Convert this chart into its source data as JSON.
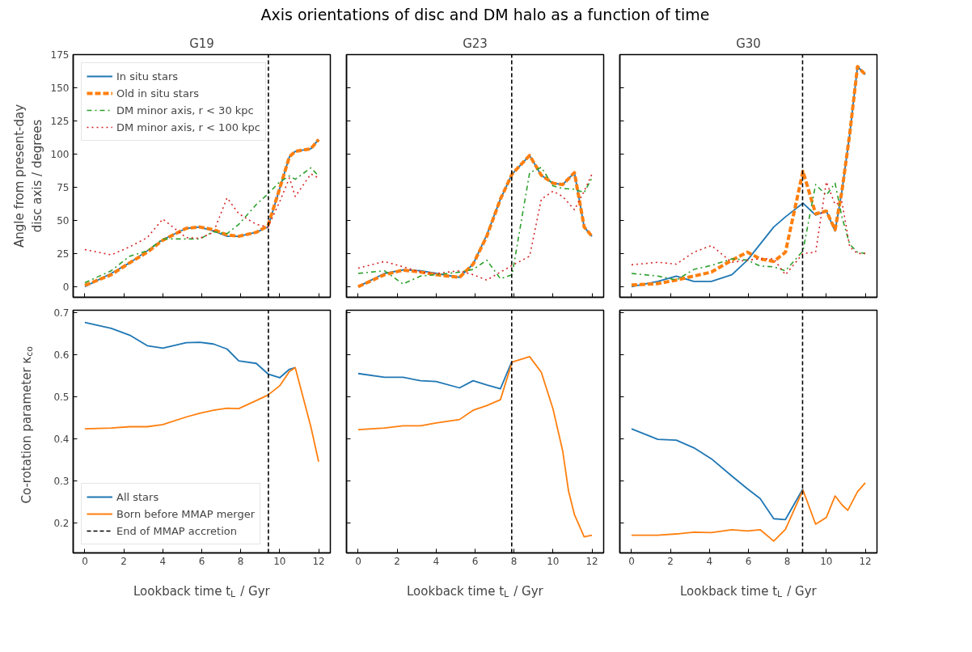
{
  "chart_data": [
    {
      "type": "line",
      "title": "G19",
      "annotations": [
        "Axis orientations of disc and DM halo as a function of time"
      ],
      "ylabel": "Angle from present-day\ndisc axis / degrees",
      "tick_labels": "y",
      "legend": "top left",
      "grid": false,
      "xlim": [
        -0.6,
        12.6
      ],
      "ylim": [
        -8,
        175
      ],
      "xticks": [
        0,
        2,
        4,
        6,
        8,
        10,
        12
      ],
      "yticks": [
        0,
        25,
        50,
        75,
        100,
        125,
        150,
        175
      ],
      "x": [
        0,
        1.35,
        2.3,
        3.2,
        4.0,
        5.2,
        5.9,
        6.6,
        7.3,
        7.9,
        8.8,
        9.4,
        10.0,
        10.5,
        10.8,
        11.6,
        12.0
      ],
      "series": [
        {
          "name": "In situ stars",
          "color": "#1f77b4",
          "line_style": "solid",
          "values": [
            0,
            10,
            18,
            27,
            35.5,
            44,
            45,
            42,
            38,
            38,
            41,
            45,
            74,
            98,
            102,
            104,
            111
          ]
        },
        {
          "name": "Old in situ stars",
          "color": "#ff7f0e",
          "line_style": "dashed",
          "values": [
            1,
            9,
            18,
            26,
            35,
            44,
            45,
            43,
            39,
            38,
            41,
            46,
            74,
            98,
            102,
            104,
            111
          ]
        },
        {
          "name": "DM minor axis, r < 30 kpc",
          "color": "#2ca02c",
          "line_style": "dashdot",
          "values": [
            3,
            12,
            23,
            27,
            36,
            36,
            36,
            41.5,
            40,
            47,
            62,
            70,
            79,
            83.5,
            81,
            89.6,
            83.5
          ]
        },
        {
          "name": "DM minor axis, r < 100 kpc",
          "color": "#d62728",
          "line_style": "dotted",
          "values": [
            28,
            24,
            30,
            37,
            51,
            37,
            36.5,
            41,
            67,
            55,
            47,
            45,
            64,
            82,
            68,
            85,
            82
          ]
        }
      ],
      "ref_lines": [
        {
          "axis": "x",
          "value": 9.42,
          "color": "#000000",
          "line_style": "dashed"
        }
      ]
    },
    {
      "type": "line",
      "title": "G23",
      "tick_labels": false,
      "grid": false,
      "xlim": [
        -0.6,
        12.6
      ],
      "ylim": [
        -8,
        175
      ],
      "xticks": [
        0,
        2,
        4,
        6,
        8,
        10,
        12
      ],
      "yticks": [
        0,
        25,
        50,
        75,
        100,
        125,
        150,
        175
      ],
      "x": [
        0,
        1.35,
        2.3,
        3.2,
        4.0,
        5.2,
        5.9,
        6.6,
        7.3,
        7.9,
        8.8,
        9.4,
        10.0,
        10.5,
        11.1,
        11.6,
        12.0
      ],
      "series": [
        {
          "color": "#1f77b4",
          "line_style": "solid",
          "values": [
            0,
            10,
            12.7,
            12,
            10,
            7,
            17,
            39,
            66,
            85,
            99,
            84,
            78,
            77,
            86,
            45,
            38
          ]
        },
        {
          "color": "#ff7f0e",
          "line_style": "dashed",
          "values": [
            0,
            9,
            12.5,
            11,
            9,
            7,
            17,
            38,
            66,
            85,
            99,
            84,
            78,
            77,
            86,
            45,
            38
          ]
        },
        {
          "color": "#2ca02c",
          "line_style": "dashdot",
          "values": [
            10,
            12,
            2,
            8,
            9,
            11,
            13,
            20,
            6,
            9,
            86,
            90,
            76,
            74,
            73.5,
            71,
            82
          ]
        },
        {
          "color": "#d62728",
          "line_style": "dotted",
          "values": [
            14,
            19,
            15,
            11,
            10,
            12,
            9,
            5,
            11,
            16,
            23,
            66,
            72,
            68,
            58,
            72,
            85
          ]
        }
      ],
      "ref_lines": [
        {
          "axis": "x",
          "value": 7.88,
          "color": "#000000",
          "line_style": "dashed"
        }
      ]
    },
    {
      "type": "line",
      "title": "G30",
      "tick_labels": false,
      "grid": false,
      "xlim": [
        -0.6,
        12.6
      ],
      "ylim": [
        -8,
        175
      ],
      "xticks": [
        0,
        2,
        4,
        6,
        8,
        10,
        12
      ],
      "yticks": [
        0,
        25,
        50,
        75,
        100,
        125,
        150,
        175
      ],
      "x": [
        0,
        1.35,
        2.3,
        3.2,
        4.1,
        5.15,
        5.95,
        6.6,
        7.3,
        7.9,
        8.8,
        9.45,
        10.0,
        10.45,
        10.8,
        11.2,
        11.6,
        12.0
      ],
      "series": [
        {
          "color": "#1f77b4",
          "line_style": "solid",
          "values": [
            0,
            4,
            8,
            4,
            4,
            9,
            20,
            32,
            45,
            52.6,
            63,
            54,
            57,
            42,
            72,
            115,
            166,
            160
          ]
        },
        {
          "color": "#ff7f0e",
          "line_style": "dashed",
          "values": [
            1.3,
            2.3,
            5,
            8,
            11,
            20,
            26,
            21,
            19,
            26,
            87,
            55,
            57,
            43,
            72,
            115,
            166,
            160
          ]
        },
        {
          "color": "#2ca02c",
          "line_style": "dashdot",
          "values": [
            10,
            8,
            5,
            13,
            16,
            21,
            20,
            15.6,
            15,
            12,
            27,
            77,
            69,
            78,
            52.6,
            32,
            26,
            25
          ]
        },
        {
          "color": "#d62728",
          "line_style": "dotted",
          "values": [
            16.5,
            18.4,
            17,
            26,
            31,
            18.4,
            20,
            21,
            21,
            9,
            25,
            26,
            79,
            62,
            64,
            30,
            25,
            25
          ]
        }
      ],
      "ref_lines": [
        {
          "axis": "x",
          "value": 8.78,
          "color": "#000000",
          "line_style": "dashed"
        }
      ]
    },
    {
      "type": "line",
      "xlabel": "Lookback time t$_{L}$ / Gyr",
      "ylabel": "Co-rotation parameter κ$_{co}$",
      "legend": "bottom left",
      "grid": false,
      "xlim": [
        -0.6,
        12.6
      ],
      "ylim": [
        0.13,
        0.705
      ],
      "xticks": [
        0,
        2,
        4,
        6,
        8,
        10,
        12
      ],
      "yticks": [
        0.2,
        0.3,
        0.4,
        0.5,
        0.6,
        0.7
      ],
      "x": [
        0,
        1.35,
        2.3,
        3.2,
        4.0,
        5.2,
        5.9,
        6.6,
        7.3,
        7.9,
        8.8,
        9.4,
        10.0,
        10.5,
        10.8,
        11.6,
        12.0
      ],
      "series": [
        {
          "name": "All stars",
          "color": "#1f77b4",
          "line_style": "solid",
          "x": [
            0,
            1.35,
            2.3,
            3.2,
            4.0,
            5.2,
            5.9,
            6.6,
            7.3,
            7.9,
            8.8,
            9.4,
            10.0,
            10.5,
            10.8
          ],
          "values": [
            0.676,
            0.662,
            0.646,
            0.621,
            0.615,
            0.628,
            0.629,
            0.625,
            0.613,
            0.585,
            0.579,
            0.554,
            0.545,
            0.565,
            0.569
          ]
        },
        {
          "name": "Born before MMAP merger",
          "color": "#ff7f0e",
          "line_style": "solid",
          "values": [
            0.424,
            0.426,
            0.429,
            0.429,
            0.434,
            0.452,
            0.461,
            0.468,
            0.473,
            0.472,
            0.491,
            0.504,
            0.526,
            0.56,
            0.569,
            0.429,
            0.346
          ]
        }
      ],
      "ref_lines": [
        {
          "axis": "x",
          "value": 9.42,
          "label": "End of MMAP accretion",
          "color": "#000000",
          "line_style": "dashed"
        }
      ]
    },
    {
      "type": "line",
      "xlabel": "Lookback time t$_{L}$ / Gyr",
      "tick_labels": "x",
      "grid": false,
      "xlim": [
        -0.6,
        12.6
      ],
      "ylim": [
        0.13,
        0.705
      ],
      "xticks": [
        0,
        2,
        4,
        6,
        8,
        10,
        12
      ],
      "yticks": [
        0.2,
        0.3,
        0.4,
        0.5,
        0.6,
        0.7
      ],
      "x": [
        0,
        1.35,
        2.3,
        3.2,
        4.0,
        5.2,
        5.9,
        6.6,
        7.3,
        7.9,
        8.8,
        9.4,
        10.0,
        10.5,
        10.8,
        11.1,
        11.6,
        12.0
      ],
      "series": [
        {
          "color": "#1f77b4",
          "line_style": "solid",
          "x": [
            0,
            1.35,
            2.3,
            3.2,
            4.0,
            5.2,
            5.9,
            6.6,
            7.3,
            7.9
          ],
          "values": [
            0.555,
            0.546,
            0.546,
            0.538,
            0.536,
            0.521,
            0.538,
            0.528,
            0.519,
            0.585
          ]
        },
        {
          "color": "#ff7f0e",
          "line_style": "solid",
          "values": [
            0.422,
            0.426,
            0.431,
            0.431,
            0.438,
            0.446,
            0.468,
            0.479,
            0.493,
            0.582,
            0.595,
            0.558,
            0.471,
            0.371,
            0.276,
            0.221,
            0.168,
            0.172
          ]
        }
      ],
      "ref_lines": [
        {
          "axis": "x",
          "value": 7.88,
          "color": "#000000",
          "line_style": "dashed"
        }
      ]
    },
    {
      "type": "line",
      "xlabel": "Lookback time t$_{L}$ / Gyr",
      "tick_labels": "x",
      "grid": false,
      "xlim": [
        -0.6,
        12.6
      ],
      "ylim": [
        0.13,
        0.705
      ],
      "xticks": [
        0,
        2,
        4,
        6,
        8,
        10,
        12
      ],
      "yticks": [
        0.2,
        0.3,
        0.4,
        0.5,
        0.6,
        0.7
      ],
      "x": [
        0,
        1.35,
        2.3,
        3.2,
        4.1,
        5.15,
        5.95,
        6.6,
        7.3,
        7.9,
        8.8,
        9.45,
        10.0,
        10.45,
        10.8,
        11.1,
        11.6,
        12.0
      ],
      "series": [
        {
          "color": "#1f77b4",
          "line_style": "solid",
          "x": [
            0,
            1.35,
            2.3,
            3.2,
            4.1,
            5.15,
            5.95,
            6.6,
            7.3,
            7.9,
            8.8
          ],
          "values": [
            0.424,
            0.399,
            0.397,
            0.379,
            0.353,
            0.312,
            0.282,
            0.259,
            0.211,
            0.209,
            0.282
          ]
        },
        {
          "color": "#ff7f0e",
          "line_style": "solid",
          "values": [
            0.172,
            0.172,
            0.175,
            0.179,
            0.178,
            0.185,
            0.182,
            0.185,
            0.158,
            0.186,
            0.279,
            0.198,
            0.214,
            0.265,
            0.244,
            0.231,
            0.275,
            0.296
          ]
        }
      ],
      "ref_lines": [
        {
          "axis": "x",
          "value": 8.78,
          "color": "#000000",
          "line_style": "dashed"
        }
      ]
    }
  ]
}
